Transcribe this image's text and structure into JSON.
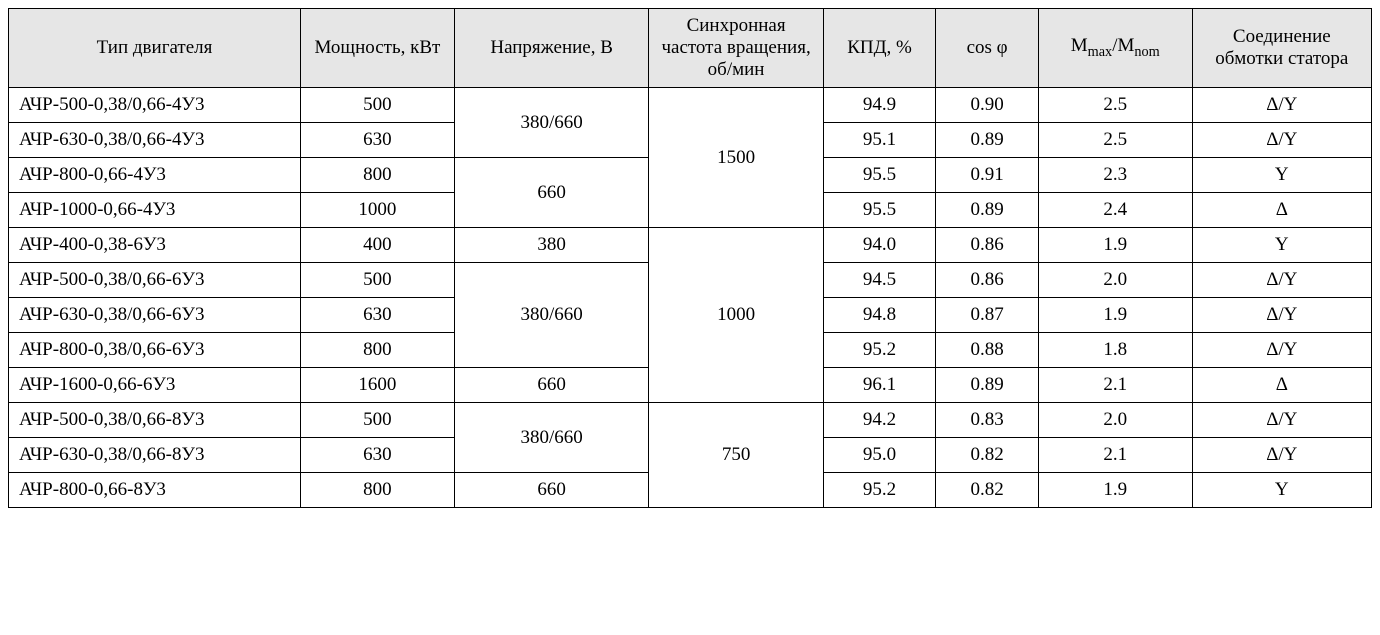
{
  "headers": {
    "type": "Тип двигателя",
    "power": "Мощность, кВт",
    "voltage": "Напряжение, В",
    "speed": "Синхронная частота вращения, об/мин",
    "kpd": "КПД, %",
    "cos": "cos φ",
    "mm_prefix": "M",
    "mm_sub1": "max",
    "mm_sep": "/M",
    "mm_sub2": "nom",
    "conn": "Соединение обмотки статора"
  },
  "merged": {
    "voltage_r1": "380/660",
    "voltage_r3": "660",
    "voltage_r5": "380",
    "voltage_r6": "380/660",
    "voltage_r9": "660",
    "voltage_r10": "380/660",
    "voltage_r12": "660",
    "speed_1500": "1500",
    "speed_1000": "1000",
    "speed_750": "750"
  },
  "rows": {
    "r1": {
      "type": "АЧР-500-0,38/0,66-4У3",
      "power": "500",
      "kpd": "94.9",
      "cos": "0.90",
      "mm": "2.5",
      "conn": "Δ/Y"
    },
    "r2": {
      "type": "АЧР-630-0,38/0,66-4У3",
      "power": "630",
      "kpd": "95.1",
      "cos": "0.89",
      "mm": "2.5",
      "conn": "Δ/Y"
    },
    "r3": {
      "type": "АЧР-800-0,66-4У3",
      "power": "800",
      "kpd": "95.5",
      "cos": "0.91",
      "mm": "2.3",
      "conn": "Y"
    },
    "r4": {
      "type": "АЧР-1000-0,66-4У3",
      "power": "1000",
      "kpd": "95.5",
      "cos": "0.89",
      "mm": "2.4",
      "conn": "Δ"
    },
    "r5": {
      "type": "АЧР-400-0,38-6У3",
      "power": "400",
      "kpd": "94.0",
      "cos": "0.86",
      "mm": "1.9",
      "conn": "Y"
    },
    "r6": {
      "type": "АЧР-500-0,38/0,66-6У3",
      "power": "500",
      "kpd": "94.5",
      "cos": "0.86",
      "mm": "2.0",
      "conn": "Δ/Y"
    },
    "r7": {
      "type": "АЧР-630-0,38/0,66-6У3",
      "power": "630",
      "kpd": "94.8",
      "cos": "0.87",
      "mm": "1.9",
      "conn": "Δ/Y"
    },
    "r8": {
      "type": "АЧР-800-0,38/0,66-6У3",
      "power": "800",
      "kpd": "95.2",
      "cos": "0.88",
      "mm": "1.8",
      "conn": "Δ/Y"
    },
    "r9": {
      "type": "АЧР-1600-0,66-6У3",
      "power": "1600",
      "kpd": "96.1",
      "cos": "0.89",
      "mm": "2.1",
      "conn": "Δ"
    },
    "r10": {
      "type": "АЧР-500-0,38/0,66-8У3",
      "power": "500",
      "kpd": "94.2",
      "cos": "0.83",
      "mm": "2.0",
      "conn": "Δ/Y"
    },
    "r11": {
      "type": "АЧР-630-0,38/0,66-8У3",
      "power": "630",
      "kpd": "95.0",
      "cos": "0.82",
      "mm": "2.1",
      "conn": "Δ/Y"
    },
    "r12": {
      "type": "АЧР-800-0,66-8У3",
      "power": "800",
      "kpd": "95.2",
      "cos": "0.82",
      "mm": "1.9",
      "conn": "Y"
    }
  }
}
